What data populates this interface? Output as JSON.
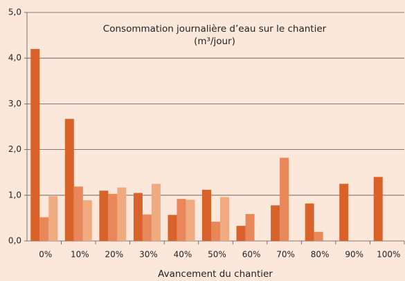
{
  "chart_data": {
    "type": "bar",
    "title": "Consommation journalière d’eau sur le chantier",
    "subtitle": "(m³/jour)",
    "x_label": "Avancement du chantier",
    "categories": [
      "0%",
      "10%",
      "20%",
      "30%",
      "40%",
      "50%",
      "60%",
      "70%",
      "80%",
      "90%",
      "100%"
    ],
    "series": [
      {
        "color": "#d9622b",
        "values": [
          4.2,
          2.67,
          1.1,
          1.05,
          0.57,
          1.12,
          0.33,
          0.78,
          0.82,
          1.25,
          1.4
        ]
      },
      {
        "color": "#e8875a",
        "values": [
          0.52,
          1.19,
          1.03,
          0.58,
          0.92,
          0.42,
          0.59,
          1.82,
          0.2,
          null,
          null
        ]
      },
      {
        "color": "#f0aa80",
        "values": [
          0.98,
          0.89,
          1.17,
          1.25,
          0.9,
          0.96,
          null,
          null,
          null,
          null,
          null
        ]
      }
    ],
    "ylim": [
      0,
      5
    ],
    "yticks": [
      {
        "value": 0,
        "label": "0,0"
      },
      {
        "value": 1,
        "label": "1,0"
      },
      {
        "value": 2,
        "label": "2,0"
      },
      {
        "value": 3,
        "label": "3,0"
      },
      {
        "value": 4,
        "label": "4,0"
      },
      {
        "value": 5,
        "label": "5,0"
      }
    ],
    "grid": true
  }
}
